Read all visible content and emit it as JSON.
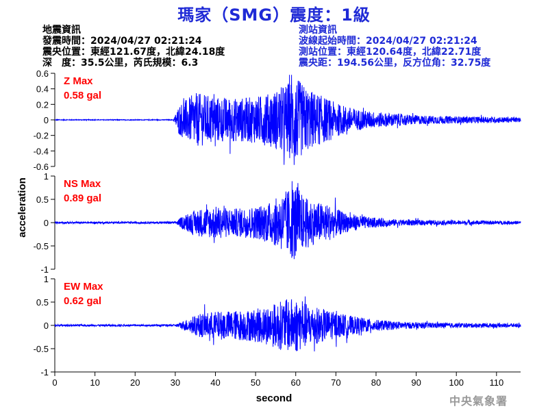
{
  "title": "瑪家（SMG）震度：1級",
  "earthquake_info": {
    "heading": "地震資訊",
    "origin_time": "發震時間：2024/04/27 02:21:24",
    "epicenter": "震央位置：東經121.67度，北緯24.18度",
    "depth_magnitude": "深　度：35.5公里，芮氏規模：6.3"
  },
  "station_info": {
    "heading": "測站資訊",
    "wave_start": "波線起始時間：2024/04/27 02:21:24",
    "station_location": "測站位置：東經120.64度，北緯22.71度",
    "distance_azimuth": "震央距：194.56公里，反方位角：32.75度"
  },
  "agency": "中央氣象署",
  "chart_data": {
    "type": "line",
    "xlabel": "second",
    "ylabel": "acceleration",
    "xlim": [
      0,
      116
    ],
    "xticks": [
      0,
      10,
      20,
      30,
      40,
      50,
      60,
      70,
      80,
      90,
      100,
      110
    ],
    "color": "#0000ff",
    "label_color": "#ff0000",
    "series": [
      {
        "name": "Z",
        "label_line1": "Z Max",
        "label_line2": "0.58 gal",
        "max_gal": 0.58,
        "ylim": [
          -0.6,
          0.6
        ],
        "yticks": [
          0.6,
          0.4,
          0.2,
          0,
          -0.2,
          -0.4,
          -0.6
        ],
        "ytick_labels": [
          "0.6",
          "0.4",
          "0.2",
          "0",
          "-0.2",
          "-0.4",
          "-0.6"
        ],
        "envelope": [
          [
            0,
            0.005
          ],
          [
            29.5,
            0.005
          ],
          [
            31,
            0.2
          ],
          [
            35,
            0.35
          ],
          [
            40,
            0.3
          ],
          [
            45,
            0.28
          ],
          [
            50,
            0.3
          ],
          [
            54,
            0.35
          ],
          [
            57,
            0.45
          ],
          [
            60,
            0.55
          ],
          [
            63,
            0.4
          ],
          [
            67,
            0.3
          ],
          [
            70,
            0.22
          ],
          [
            75,
            0.14
          ],
          [
            80,
            0.1
          ],
          [
            90,
            0.06
          ],
          [
            100,
            0.045
          ],
          [
            110,
            0.04
          ],
          [
            116,
            0.03
          ]
        ]
      },
      {
        "name": "NS",
        "label_line1": "NS Max",
        "label_line2": "0.89 gal",
        "max_gal": 0.89,
        "ylim": [
          -1,
          1
        ],
        "yticks": [
          1,
          0.5,
          0,
          -0.5,
          -1
        ],
        "ytick_labels": [
          "1",
          "0.5",
          "0",
          "-0.5",
          "-1"
        ],
        "envelope": [
          [
            0,
            0.02
          ],
          [
            30,
            0.02
          ],
          [
            32,
            0.15
          ],
          [
            36,
            0.3
          ],
          [
            40,
            0.35
          ],
          [
            45,
            0.3
          ],
          [
            50,
            0.35
          ],
          [
            54,
            0.45
          ],
          [
            57,
            0.65
          ],
          [
            60,
            0.85
          ],
          [
            62,
            0.55
          ],
          [
            65,
            0.45
          ],
          [
            68,
            0.4
          ],
          [
            72,
            0.22
          ],
          [
            78,
            0.12
          ],
          [
            85,
            0.07
          ],
          [
            95,
            0.05
          ],
          [
            110,
            0.04
          ],
          [
            116,
            0.035
          ]
        ]
      },
      {
        "name": "EW",
        "label_line1": "EW Max",
        "label_line2": "0.62 gal",
        "max_gal": 0.62,
        "ylim": [
          -1,
          1
        ],
        "yticks": [
          1,
          0.5,
          0,
          -0.5,
          -1
        ],
        "ytick_labels": [
          "1",
          "0.5",
          "0",
          "-0.5",
          "-1"
        ],
        "envelope": [
          [
            0,
            0.02
          ],
          [
            30,
            0.02
          ],
          [
            32,
            0.1
          ],
          [
            36,
            0.25
          ],
          [
            40,
            0.3
          ],
          [
            45,
            0.32
          ],
          [
            50,
            0.35
          ],
          [
            54,
            0.45
          ],
          [
            57,
            0.55
          ],
          [
            60,
            0.6
          ],
          [
            63,
            0.45
          ],
          [
            67,
            0.35
          ],
          [
            70,
            0.28
          ],
          [
            74,
            0.2
          ],
          [
            80,
            0.12
          ],
          [
            88,
            0.07
          ],
          [
            100,
            0.05
          ],
          [
            116,
            0.04
          ]
        ]
      }
    ]
  }
}
